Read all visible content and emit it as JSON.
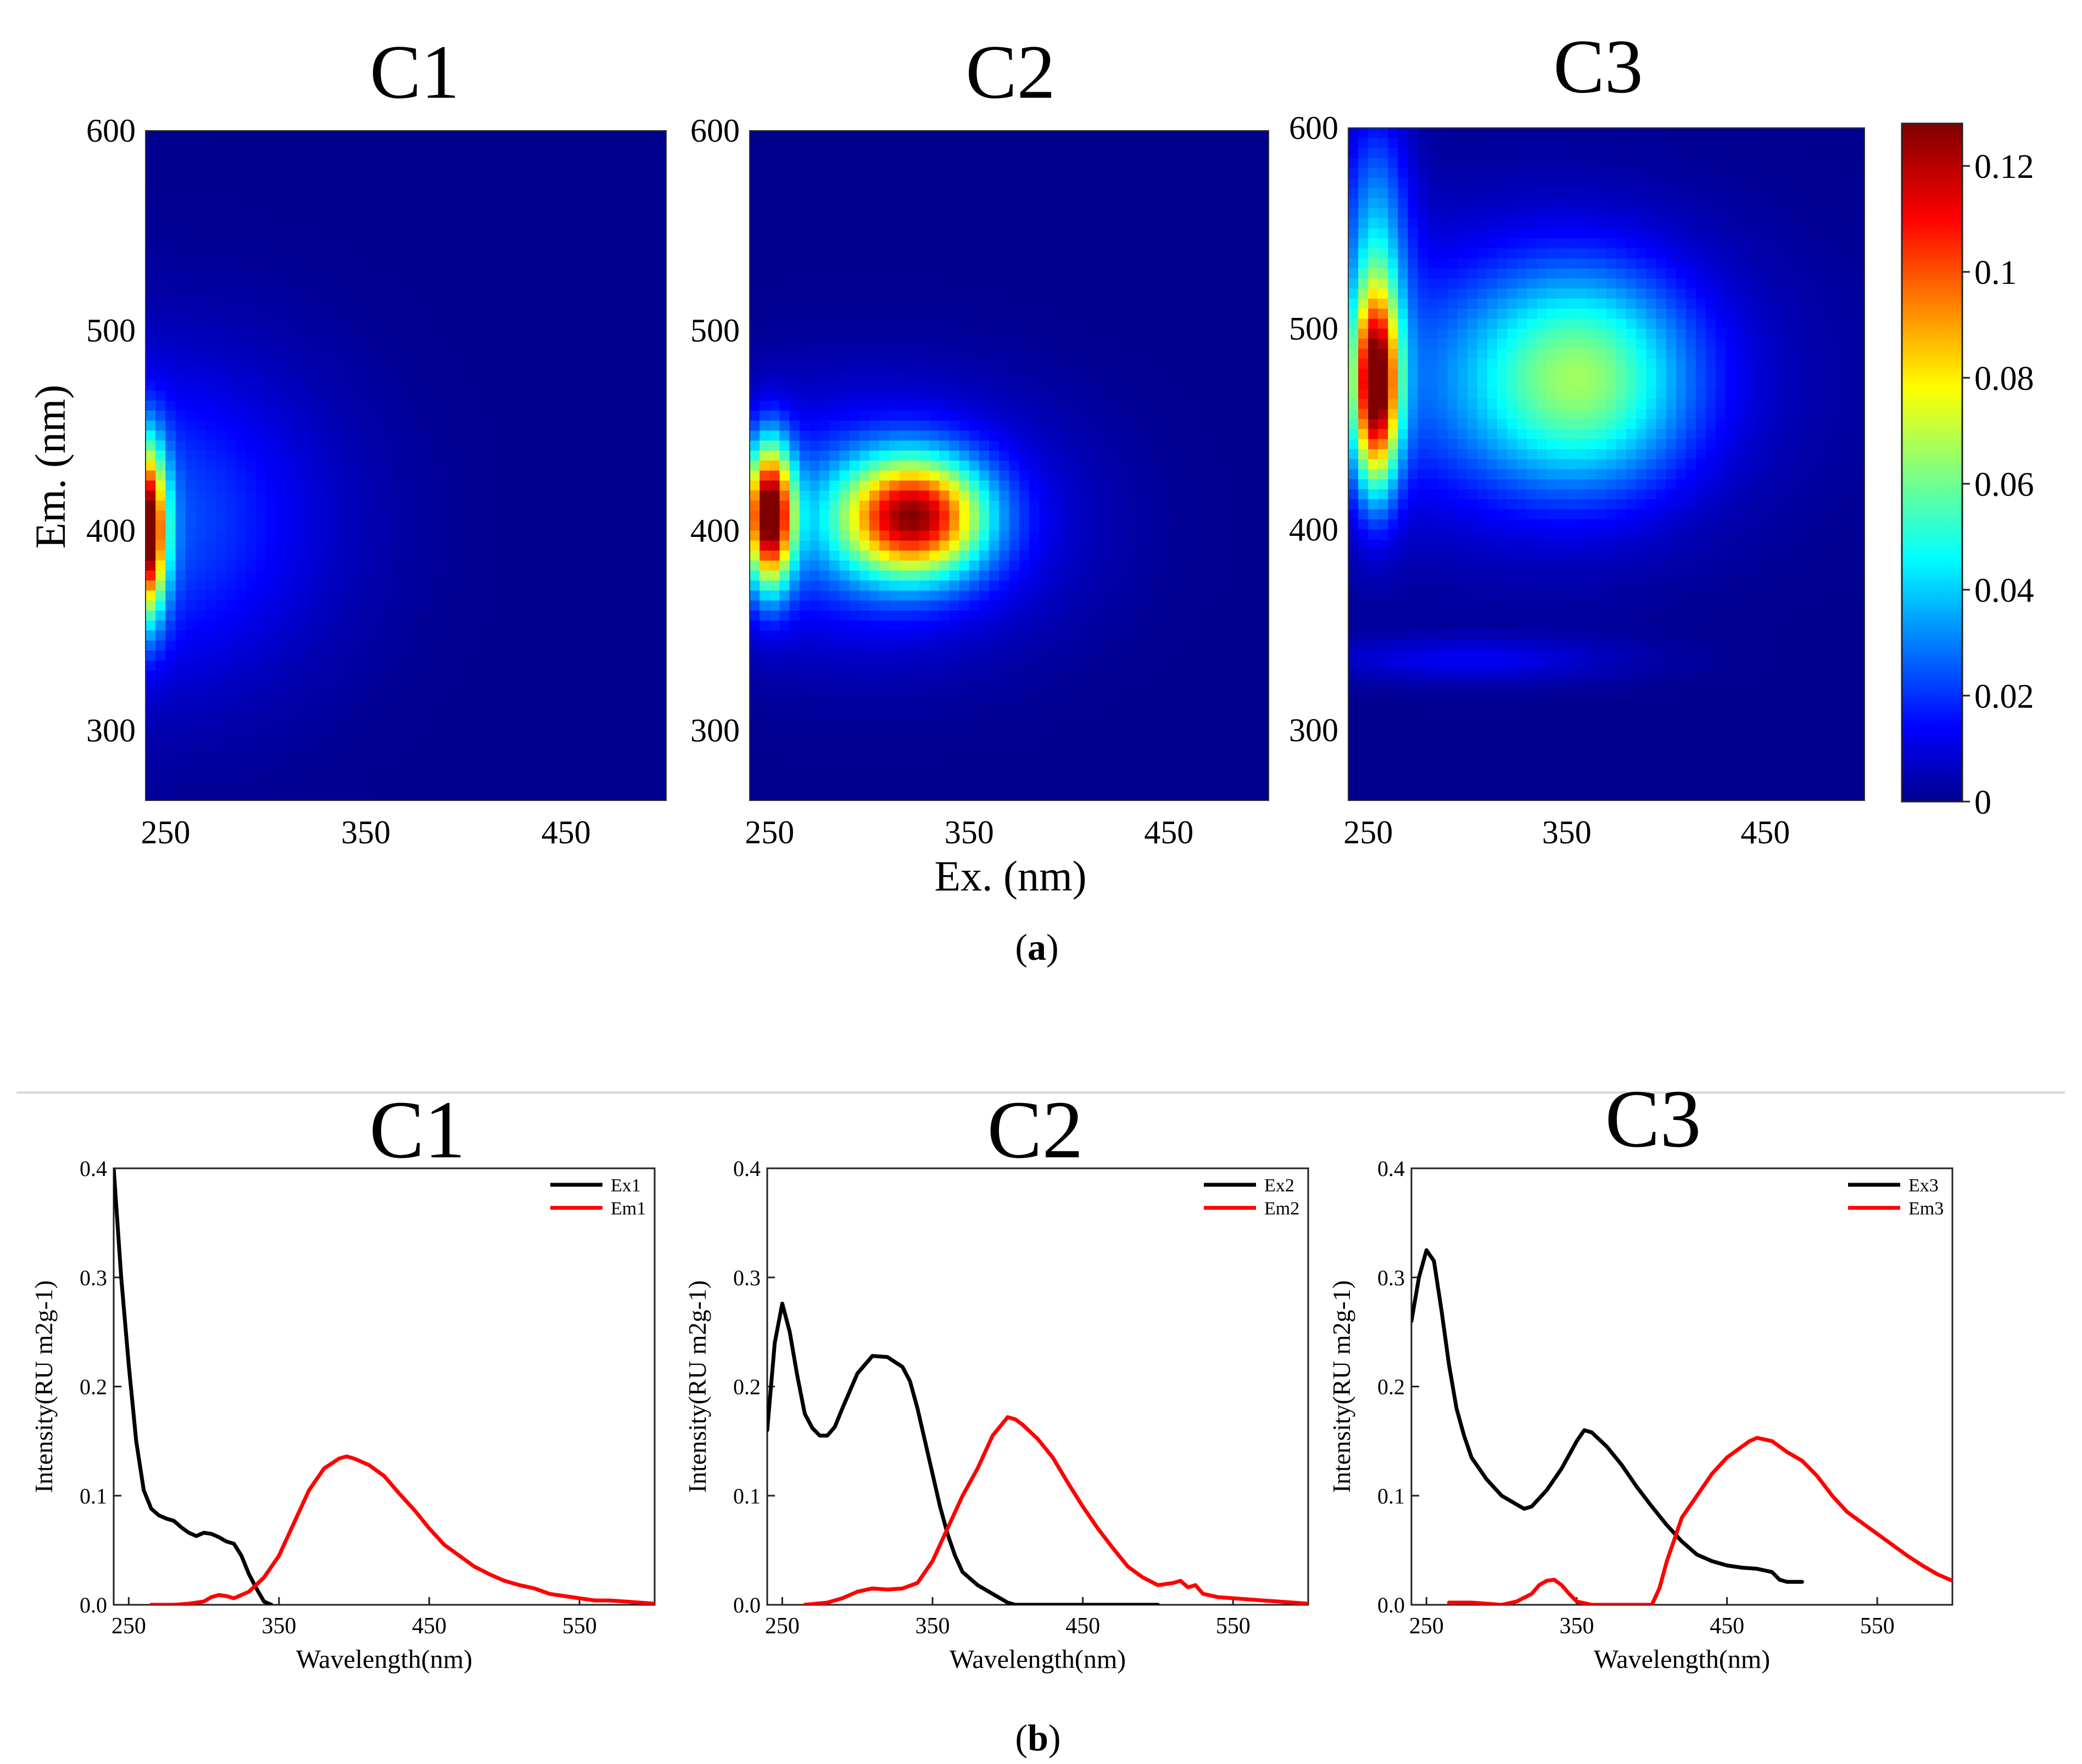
{
  "figure": {
    "label_a": "a",
    "label_b": "b"
  },
  "colorbar": {
    "ticks": [
      "0",
      "0.02",
      "0.04",
      "0.06",
      "0.08",
      "0.1",
      "0.12"
    ],
    "tick_values": [
      0,
      0.02,
      0.04,
      0.06,
      0.08,
      0.1,
      0.12
    ],
    "range": [
      0,
      0.128
    ]
  },
  "chart_data": [
    {
      "type": "heatmap",
      "title": "C1",
      "xlabel": "",
      "ylabel": "Em. (nm)",
      "xlim": [
        240,
        500
      ],
      "ylim": [
        265,
        600
      ],
      "xticks": [
        250,
        350,
        450
      ],
      "yticks": [
        300,
        400,
        500,
        600
      ],
      "peaks": [
        {
          "ex": 240,
          "em": 400,
          "intensity": 0.125,
          "sx": 7,
          "sy": 28
        },
        {
          "ex": 240,
          "em": 405,
          "intensity": 0.025,
          "sx": 60,
          "sy": 55
        }
      ]
    },
    {
      "type": "heatmap",
      "title": "C2",
      "xlabel": "Ex. (nm)",
      "ylabel": "",
      "xlim": [
        240,
        500
      ],
      "ylim": [
        265,
        600
      ],
      "xticks": [
        250,
        350,
        450
      ],
      "yticks": [
        300,
        400,
        500,
        600
      ],
      "peaks": [
        {
          "ex": 250,
          "em": 408,
          "intensity": 0.122,
          "sx": 8,
          "sy": 24
        },
        {
          "ex": 322,
          "em": 407,
          "intensity": 0.1,
          "sx": 24,
          "sy": 20
        },
        {
          "ex": 300,
          "em": 405,
          "intensity": 0.03,
          "sx": 60,
          "sy": 40
        }
      ]
    },
    {
      "type": "heatmap",
      "title": "C3",
      "xlabel": "",
      "ylabel": "",
      "xlim": [
        240,
        500
      ],
      "ylim": [
        265,
        600
      ],
      "xticks": [
        250,
        350,
        450
      ],
      "yticks": [
        300,
        400,
        500,
        600
      ],
      "peaks": [
        {
          "ex": 254,
          "em": 472,
          "intensity": 0.122,
          "sx": 8,
          "sy": 34
        },
        {
          "ex": 358,
          "em": 475,
          "intensity": 0.048,
          "sx": 38,
          "sy": 38
        },
        {
          "ex": 300,
          "em": 475,
          "intensity": 0.022,
          "sx": 90,
          "sy": 50
        },
        {
          "ex": 254,
          "em": 555,
          "intensity": 0.028,
          "sx": 12,
          "sy": 40
        },
        {
          "ex": 300,
          "em": 335,
          "intensity": 0.012,
          "sx": 55,
          "sy": 8
        }
      ]
    },
    {
      "type": "line",
      "title": "C1",
      "xlabel": "Wavelength(nm)",
      "ylabel": "Intensity(RU m2g-1)",
      "xlim": [
        240,
        600
      ],
      "ylim": [
        0,
        0.4
      ],
      "xticks": [
        250,
        350,
        450,
        550
      ],
      "yticks": [
        0.0,
        0.1,
        0.2,
        0.3,
        0.4
      ],
      "series": [
        {
          "name": "Ex1",
          "color": "#000000",
          "x": [
            240,
            245,
            250,
            255,
            260,
            265,
            270,
            275,
            280,
            285,
            290,
            295,
            300,
            305,
            310,
            315,
            320,
            325,
            330,
            335,
            340,
            345
          ],
          "values": [
            0.4,
            0.3,
            0.22,
            0.15,
            0.105,
            0.088,
            0.082,
            0.079,
            0.077,
            0.071,
            0.066,
            0.063,
            0.066,
            0.065,
            0.062,
            0.058,
            0.056,
            0.045,
            0.028,
            0.015,
            0.003,
            0.0
          ]
        },
        {
          "name": "Em1",
          "color": "#ff0000",
          "x": [
            265,
            280,
            290,
            300,
            305,
            310,
            315,
            320,
            330,
            340,
            350,
            360,
            370,
            380,
            390,
            395,
            400,
            410,
            420,
            430,
            440,
            450,
            460,
            470,
            480,
            490,
            500,
            510,
            520,
            530,
            540,
            550,
            560,
            570,
            580,
            590,
            600
          ],
          "values": [
            0.0,
            0.0,
            0.001,
            0.003,
            0.007,
            0.009,
            0.008,
            0.006,
            0.012,
            0.025,
            0.045,
            0.075,
            0.105,
            0.125,
            0.134,
            0.136,
            0.134,
            0.128,
            0.118,
            0.102,
            0.087,
            0.07,
            0.055,
            0.045,
            0.035,
            0.028,
            0.022,
            0.018,
            0.015,
            0.01,
            0.008,
            0.006,
            0.004,
            0.004,
            0.003,
            0.002,
            0.001
          ]
        }
      ]
    },
    {
      "type": "line",
      "title": "C2",
      "xlabel": "Wavelength(nm)",
      "ylabel": "Intensity(RU m2g-1)",
      "xlim": [
        240,
        600
      ],
      "ylim": [
        0,
        0.4
      ],
      "xticks": [
        250,
        350,
        450,
        550
      ],
      "yticks": [
        0.0,
        0.1,
        0.2,
        0.3,
        0.4
      ],
      "series": [
        {
          "name": "Ex2",
          "color": "#000000",
          "x": [
            240,
            245,
            250,
            255,
            260,
            265,
            270,
            275,
            280,
            285,
            290,
            300,
            310,
            320,
            330,
            335,
            340,
            345,
            350,
            355,
            360,
            365,
            370,
            380,
            390,
            400,
            405,
            410,
            420,
            450,
            500
          ],
          "values": [
            0.16,
            0.24,
            0.276,
            0.25,
            0.21,
            0.175,
            0.162,
            0.155,
            0.155,
            0.163,
            0.18,
            0.212,
            0.228,
            0.227,
            0.218,
            0.205,
            0.18,
            0.15,
            0.12,
            0.09,
            0.065,
            0.045,
            0.03,
            0.018,
            0.01,
            0.002,
            0.0,
            0.0,
            0.0,
            0.0,
            0.0
          ]
        },
        {
          "name": "Em2",
          "color": "#ff0000",
          "x": [
            265,
            280,
            290,
            300,
            310,
            320,
            330,
            340,
            350,
            360,
            370,
            380,
            390,
            400,
            405,
            410,
            420,
            430,
            440,
            450,
            460,
            470,
            480,
            490,
            500,
            510,
            515,
            520,
            525,
            530,
            540,
            550,
            560,
            570,
            580,
            590,
            600
          ],
          "values": [
            0.0,
            0.002,
            0.006,
            0.012,
            0.015,
            0.014,
            0.015,
            0.02,
            0.04,
            0.07,
            0.1,
            0.125,
            0.155,
            0.172,
            0.17,
            0.165,
            0.152,
            0.135,
            0.112,
            0.09,
            0.07,
            0.052,
            0.035,
            0.025,
            0.018,
            0.02,
            0.022,
            0.016,
            0.018,
            0.01,
            0.007,
            0.006,
            0.005,
            0.004,
            0.003,
            0.002,
            0.001
          ]
        }
      ]
    },
    {
      "type": "line",
      "title": "C3",
      "xlabel": "Wavelength(nm)",
      "ylabel": "Intensity(RU m2g-1)",
      "xlim": [
        240,
        600
      ],
      "ylim": [
        0,
        0.4
      ],
      "xticks": [
        250,
        350,
        450,
        550
      ],
      "yticks": [
        0.0,
        0.1,
        0.2,
        0.3,
        0.4
      ],
      "series": [
        {
          "name": "Ex3",
          "color": "#000000",
          "x": [
            240,
            245,
            250,
            255,
            260,
            265,
            270,
            275,
            280,
            290,
            300,
            310,
            315,
            320,
            330,
            340,
            350,
            355,
            360,
            370,
            380,
            390,
            400,
            410,
            420,
            430,
            440,
            450,
            460,
            470,
            480,
            485,
            490,
            500
          ],
          "values": [
            0.26,
            0.3,
            0.325,
            0.315,
            0.27,
            0.22,
            0.18,
            0.155,
            0.135,
            0.115,
            0.1,
            0.092,
            0.088,
            0.09,
            0.105,
            0.125,
            0.15,
            0.16,
            0.158,
            0.145,
            0.128,
            0.108,
            0.09,
            0.073,
            0.058,
            0.046,
            0.04,
            0.036,
            0.034,
            0.033,
            0.03,
            0.023,
            0.021,
            0.021
          ]
        },
        {
          "name": "Em3",
          "color": "#ff0000",
          "x": [
            265,
            280,
            290,
            300,
            310,
            320,
            325,
            330,
            335,
            340,
            345,
            350,
            360,
            370,
            380,
            390,
            400,
            405,
            410,
            420,
            430,
            440,
            450,
            460,
            465,
            470,
            480,
            490,
            500,
            510,
            520,
            530,
            540,
            550,
            560,
            570,
            580,
            590,
            600
          ],
          "values": [
            0.002,
            0.002,
            0.001,
            0.0,
            0.003,
            0.01,
            0.018,
            0.022,
            0.023,
            0.018,
            0.01,
            0.003,
            0.0,
            0.0,
            0.0,
            0.0,
            0.0,
            0.015,
            0.04,
            0.08,
            0.1,
            0.12,
            0.135,
            0.145,
            0.15,
            0.153,
            0.15,
            0.14,
            0.132,
            0.118,
            0.1,
            0.085,
            0.075,
            0.065,
            0.055,
            0.045,
            0.036,
            0.028,
            0.022
          ]
        }
      ]
    }
  ]
}
